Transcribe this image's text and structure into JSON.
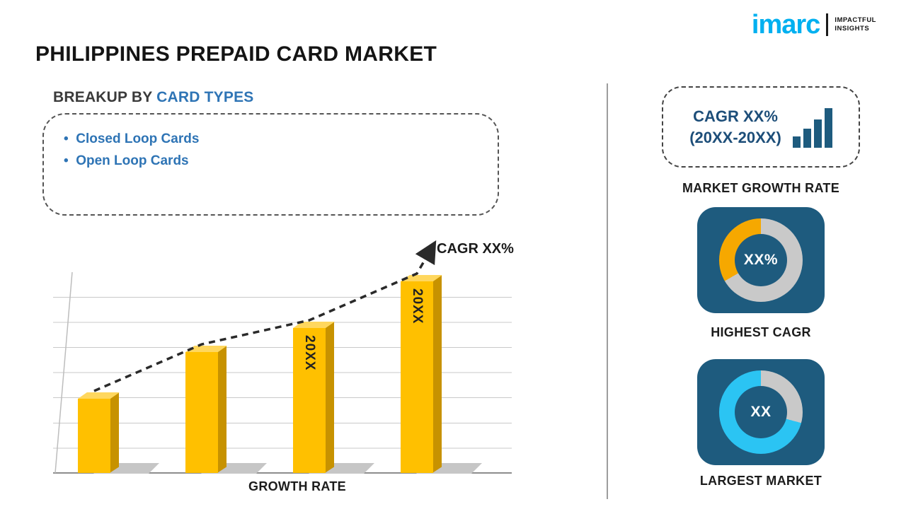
{
  "header": {
    "title": "PHILIPPINES PREPAID CARD MARKET"
  },
  "logo": {
    "name": "imarc",
    "tagline_line1": "IMPACTFUL",
    "tagline_line2": "INSIGHTS"
  },
  "breakup": {
    "heading_prefix": "BREAKUP BY ",
    "heading_highlight": "CARD TYPES",
    "items": [
      "Closed Loop Cards",
      "Open Loop Cards"
    ]
  },
  "chart_data": {
    "type": "bar",
    "title": "",
    "categories": [
      "",
      "",
      "20XX",
      "20XX"
    ],
    "values": [
      37,
      60,
      72,
      95
    ],
    "bar_labels": [
      "",
      "",
      "20XX",
      "20XX"
    ],
    "xlabel": "GROWTH RATE",
    "ylabel": "",
    "ylim": [
      0,
      100
    ],
    "grid": true,
    "legend": "none",
    "trend_label": "CAGR XX%"
  },
  "sidebar": {
    "growth_box": {
      "line1": "CAGR XX%",
      "line2": "(20XX-20XX)",
      "caption": "MARKET GROWTH RATE"
    },
    "highest_cagr": {
      "value": "XX%",
      "caption": "HIGHEST CAGR",
      "segments": [
        {
          "color": "#c9c9c9",
          "from": 0,
          "to": 240
        },
        {
          "color": "#f6a800",
          "from": 240,
          "to": 360
        }
      ]
    },
    "largest_market": {
      "value": "XX",
      "caption": "LARGEST MARKET",
      "segments": [
        {
          "color": "#c9c9c9",
          "from": 0,
          "to": 105
        },
        {
          "color": "#2bc4f3",
          "from": 105,
          "to": 360
        }
      ]
    }
  },
  "colors": {
    "accent_blue": "#2e74b5",
    "square_bg": "#1e5b7e",
    "bar_front": "#FFC000",
    "bar_top": "#FFD75E",
    "bar_side": "#C79200",
    "logo_cyan": "#00b0f0",
    "deep_navy": "#1d4e79",
    "divider_gray": "#9d9d9d",
    "grid_gray": "#c9c9c9",
    "trend_black": "#2a2a2a"
  }
}
